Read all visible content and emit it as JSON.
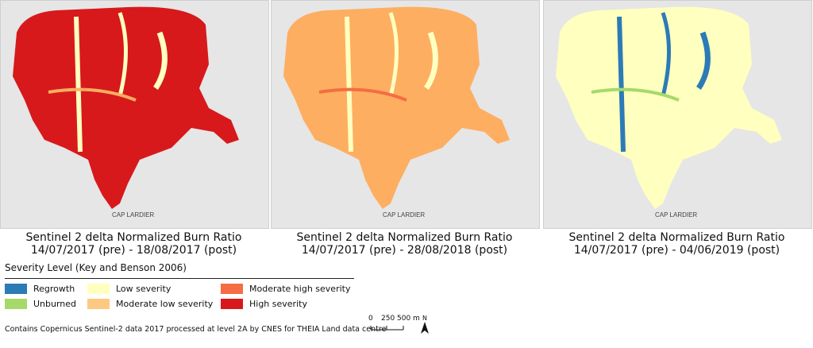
{
  "maps": [
    {
      "caption_line1": "Sentinel 2 delta Normalized Burn Ratio",
      "caption_line2": "14/07/2017 (pre) - 18/08/2017 (post)",
      "dominant_color": "#d7191c",
      "secondary_color": "#fdae61",
      "accent_color": "#ffffbf",
      "place_label": "CAP LARDIER"
    },
    {
      "caption_line1": "Sentinel 2 delta Normalized Burn Ratio",
      "caption_line2": "14/07/2017 (pre) - 28/08/2018 (post)",
      "dominant_color": "#fdae61",
      "secondary_color": "#f46d43",
      "accent_color": "#ffffbf",
      "place_label": "CAP LARDIER"
    },
    {
      "caption_line1": "Sentinel 2 delta Normalized Burn Ratio",
      "caption_line2": "14/07/2017 (pre) - 04/06/2019 (post)",
      "dominant_color": "#ffffbf",
      "secondary_color": "#a6d96a",
      "accent_color": "#2c7bb6",
      "place_label": "CAP LARDIER"
    }
  ],
  "legend": {
    "title": "Severity Level (Key and Benson 2006)",
    "items": [
      {
        "label": "Regrowth",
        "color": "#2c7bb6"
      },
      {
        "label": "Unburned",
        "color": "#a6d96a"
      },
      {
        "label": "Low severity",
        "color": "#ffffbf"
      },
      {
        "label": "Moderate low severity",
        "color": "#fdc980"
      },
      {
        "label": "Moderate high severity",
        "color": "#f46d43"
      },
      {
        "label": "High severity",
        "color": "#d7191c"
      }
    ]
  },
  "credit": "Contains Copernicus Sentinel-2 data 2017 processed at level 2A by CNES for THEIA Land data centre",
  "scale": {
    "labels": [
      "0",
      "250",
      "500 m"
    ]
  },
  "north_label": "N"
}
